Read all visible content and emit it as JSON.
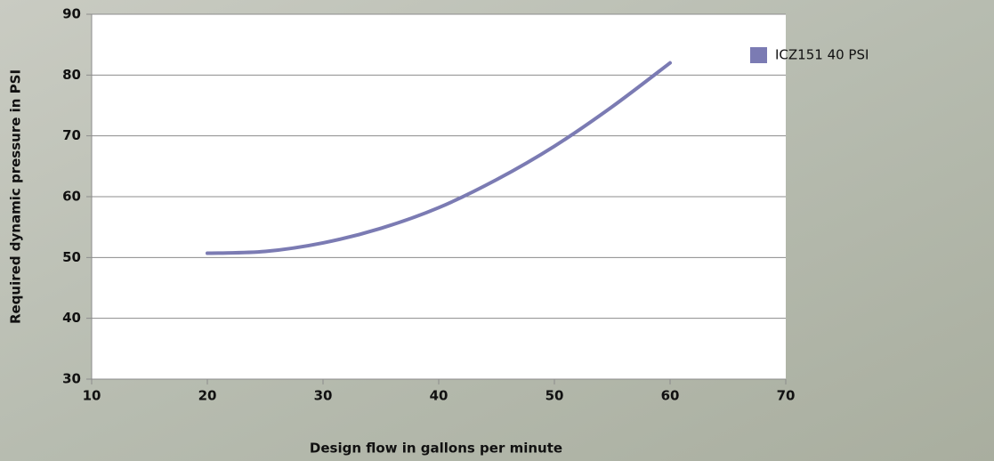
{
  "chart_data": {
    "type": "line",
    "x_label": "Design flow in gallons per minute",
    "y_label": "Required dynamic pressure in PSI",
    "x": [
      20,
      25,
      30,
      35,
      40,
      45,
      50,
      55,
      60
    ],
    "series": [
      {
        "name": "ICZ151 40 PSI",
        "color": "#7b7bb3",
        "values": [
          50.7,
          51.0,
          52.4,
          54.8,
          58.2,
          62.8,
          68.3,
          74.8,
          82.0
        ]
      }
    ],
    "xlim": [
      10,
      70
    ],
    "xticks": [
      10,
      20,
      30,
      40,
      50,
      60,
      70
    ],
    "ylim": [
      30,
      90
    ],
    "yticks": [
      30,
      40,
      50,
      60,
      70,
      80,
      90
    ],
    "grid": true,
    "legend": "right"
  }
}
